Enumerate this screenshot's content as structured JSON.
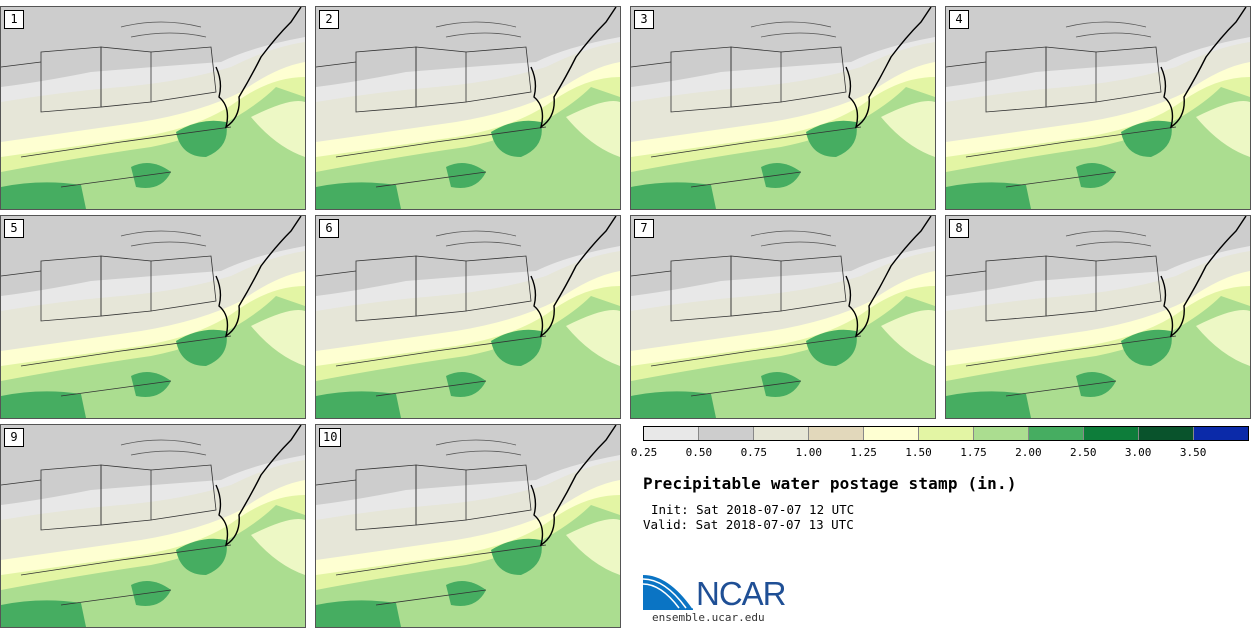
{
  "members": [
    "1",
    "2",
    "3",
    "4",
    "5",
    "6",
    "7",
    "8",
    "9",
    "10"
  ],
  "colorbar": {
    "ticks": [
      "0.25",
      "0.50",
      "0.75",
      "1.00",
      "1.25",
      "1.50",
      "1.75",
      "2.00",
      "2.50",
      "3.00",
      "3.50"
    ],
    "colors": [
      "#e8e8e8",
      "#cdcdcd",
      "#e6e6d6",
      "#e2d8bb",
      "#feffd2",
      "#e3f5a4",
      "#abdd90",
      "#46ad61",
      "#0d7d3a",
      "#09532c",
      "#0b2aa9"
    ]
  },
  "title": "Precipitable water postage stamp (in.)",
  "init": "Init: Sat 2018-07-07 12 UTC",
  "valid": "Valid: Sat 2018-07-07 13 UTC",
  "logo_text": "NCAR",
  "site": "ensemble.ucar.edu"
}
